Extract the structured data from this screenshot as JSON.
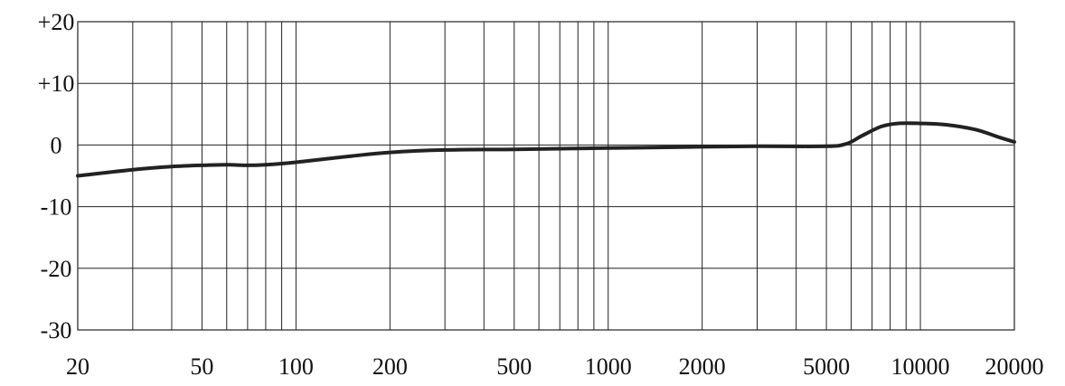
{
  "chart_data": {
    "type": "line",
    "title": "",
    "xlabel": "",
    "ylabel": "",
    "x_scale": "log",
    "xlim": [
      20,
      20000
    ],
    "ylim": [
      -30,
      20
    ],
    "grid": true,
    "legend": "none",
    "x_tick_labels": [
      "20",
      "50",
      "100",
      "200",
      "500",
      "1000",
      "2000",
      "5000",
      "10000",
      "20000"
    ],
    "y_tick_labels": [
      "+20",
      "+10",
      "0",
      "-10",
      "-20",
      "-30"
    ],
    "y_ticks": [
      20,
      10,
      0,
      -10,
      -20,
      -30
    ],
    "x_ticks": [
      20,
      50,
      100,
      200,
      500,
      1000,
      2000,
      5000,
      10000,
      20000
    ],
    "series": [
      {
        "x": [
          20,
          30,
          40,
          50,
          60,
          70,
          80,
          100,
          150,
          200,
          300,
          500,
          1000,
          2000,
          3000,
          5000,
          5800,
          6500,
          7500,
          8500,
          10000,
          12000,
          15000,
          18000,
          20000
        ],
        "y": [
          -5,
          -4,
          -3.5,
          -3.3,
          -3.2,
          -3.3,
          -3.2,
          -2.8,
          -1.8,
          -1.2,
          -0.8,
          -0.7,
          -0.5,
          -0.3,
          -0.2,
          -0.2,
          0.2,
          1.5,
          3,
          3.5,
          3.5,
          3.3,
          2.5,
          1.2,
          0.5
        ]
      }
    ],
    "colors": {
      "curve": "#222222",
      "grid": "#222222",
      "text": "#111111"
    }
  }
}
